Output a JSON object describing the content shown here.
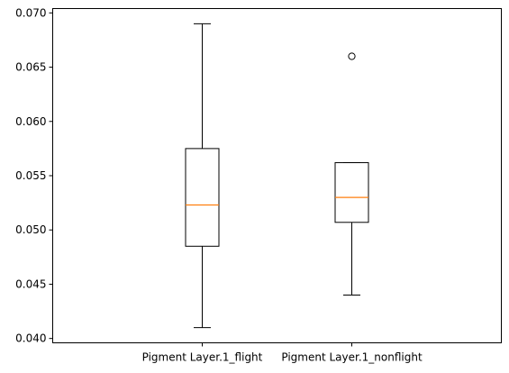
{
  "chart_data": {
    "type": "boxplot",
    "categories": [
      "Pigment Layer.1_flight",
      "Pigment Layer.1_nonflight"
    ],
    "boxes": [
      {
        "label": "Pigment Layer.1_flight",
        "whisker_low": 0.041,
        "q1": 0.0485,
        "median": 0.0523,
        "q3": 0.0575,
        "whisker_high": 0.069,
        "outliers": []
      },
      {
        "label": "Pigment Layer.1_nonflight",
        "whisker_low": 0.044,
        "q1": 0.0507,
        "median": 0.053,
        "q3": 0.0562,
        "whisker_high": 0.0562,
        "outliers": [
          0.066
        ]
      }
    ],
    "yticks": [
      "0.040",
      "0.045",
      "0.050",
      "0.055",
      "0.060",
      "0.065",
      "0.070"
    ],
    "ylim": [
      0.0396,
      0.0704
    ],
    "grid": false,
    "colors": {
      "box": "#000000",
      "median": "#ff7f0e",
      "outlier": "#000000"
    }
  }
}
